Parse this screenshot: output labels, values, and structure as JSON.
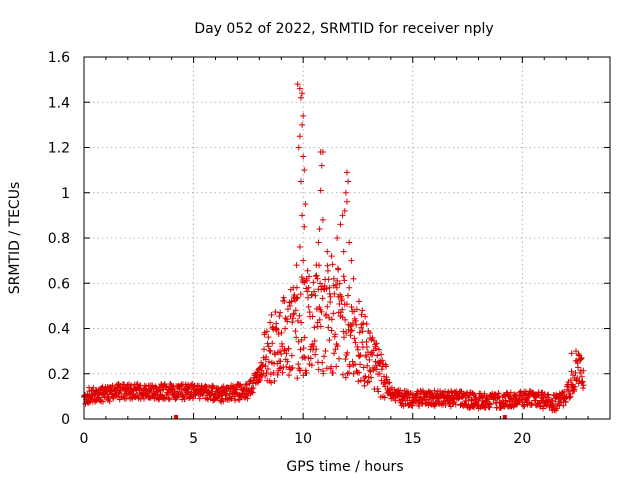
{
  "chart_data": {
    "type": "scatter",
    "title": "Day 052 of 2022, SRMTID for receiver nply",
    "xlabel": "GPS time / hours",
    "ylabel": "SRMTID / TECUs",
    "xlim": [
      0,
      24
    ],
    "ylim": [
      0,
      1.6
    ],
    "xticks": [
      0,
      5,
      10,
      15,
      20
    ],
    "xtick_labels": [
      "0",
      "5",
      "10",
      "15",
      "20"
    ],
    "yticks": [
      0,
      0.2,
      0.4,
      0.6,
      0.8,
      1.0,
      1.2,
      1.4,
      1.6
    ],
    "ytick_labels": [
      "0",
      "0.2",
      "0.4",
      "0.6",
      "0.8",
      "1",
      "1.2",
      "1.4",
      "1.6"
    ],
    "grid": true,
    "marker": "plus",
    "color": "#e00000",
    "series": [
      {
        "name": "SRMTID",
        "profile": [
          [
            0.0,
            0.1
          ],
          [
            0.5,
            0.11
          ],
          [
            1.0,
            0.11
          ],
          [
            1.5,
            0.12
          ],
          [
            2.0,
            0.12
          ],
          [
            2.5,
            0.12
          ],
          [
            3.0,
            0.12
          ],
          [
            3.5,
            0.12
          ],
          [
            4.0,
            0.12
          ],
          [
            4.5,
            0.12
          ],
          [
            5.0,
            0.12
          ],
          [
            5.5,
            0.12
          ],
          [
            6.0,
            0.11
          ],
          [
            6.5,
            0.11
          ],
          [
            7.0,
            0.12
          ],
          [
            7.5,
            0.12
          ],
          [
            8.0,
            0.2
          ],
          [
            8.5,
            0.3
          ],
          [
            9.0,
            0.34
          ],
          [
            9.5,
            0.38
          ],
          [
            10.0,
            0.42
          ],
          [
            10.5,
            0.45
          ],
          [
            11.0,
            0.44
          ],
          [
            11.5,
            0.45
          ],
          [
            12.0,
            0.4
          ],
          [
            12.5,
            0.32
          ],
          [
            13.0,
            0.28
          ],
          [
            13.5,
            0.2
          ],
          [
            14.0,
            0.12
          ],
          [
            14.5,
            0.09
          ],
          [
            15.0,
            0.09
          ],
          [
            16.0,
            0.09
          ],
          [
            17.0,
            0.09
          ],
          [
            18.0,
            0.08
          ],
          [
            19.0,
            0.08
          ],
          [
            20.0,
            0.09
          ],
          [
            20.5,
            0.09
          ],
          [
            21.0,
            0.08
          ],
          [
            21.5,
            0.07
          ],
          [
            22.0,
            0.1
          ],
          [
            22.5,
            0.22
          ],
          [
            22.8,
            0.2
          ]
        ],
        "x_range": [
          0.0,
          22.8
        ],
        "n_points": 1400,
        "outliers": [
          [
            9.75,
            1.48
          ],
          [
            9.85,
            1.46
          ],
          [
            9.9,
            1.42
          ],
          [
            9.95,
            1.44
          ],
          [
            10.0,
            1.34
          ],
          [
            9.95,
            1.3
          ],
          [
            9.85,
            1.25
          ],
          [
            9.8,
            1.2
          ],
          [
            10.0,
            1.16
          ],
          [
            10.05,
            1.1
          ],
          [
            9.9,
            1.05
          ],
          [
            10.1,
            0.95
          ],
          [
            9.95,
            0.9
          ],
          [
            10.05,
            0.85
          ],
          [
            9.85,
            0.76
          ],
          [
            10.0,
            0.7
          ],
          [
            9.7,
            0.68
          ],
          [
            10.15,
            0.62
          ],
          [
            10.8,
            1.18
          ],
          [
            10.9,
            1.18
          ],
          [
            10.85,
            1.12
          ],
          [
            10.8,
            1.01
          ],
          [
            10.9,
            0.88
          ],
          [
            10.75,
            0.84
          ],
          [
            10.7,
            0.78
          ],
          [
            10.6,
            0.68
          ],
          [
            10.65,
            0.62
          ],
          [
            11.1,
            0.74
          ],
          [
            11.3,
            0.72
          ],
          [
            11.55,
            0.8
          ],
          [
            11.7,
            0.86
          ],
          [
            11.8,
            0.9
          ],
          [
            11.9,
            0.92
          ],
          [
            12.0,
            0.96
          ],
          [
            11.95,
            1.0
          ],
          [
            12.05,
            1.05
          ],
          [
            12.0,
            1.09
          ],
          [
            12.1,
            0.78
          ],
          [
            11.85,
            0.74
          ],
          [
            11.6,
            0.66
          ],
          [
            11.4,
            0.62
          ],
          [
            12.2,
            0.7
          ],
          [
            12.3,
            0.62
          ],
          [
            12.1,
            0.58
          ],
          [
            11.2,
            0.58
          ],
          [
            10.4,
            0.55
          ],
          [
            10.25,
            0.58
          ],
          [
            9.55,
            0.58
          ],
          [
            9.4,
            0.5
          ],
          [
            8.95,
            0.47
          ],
          [
            12.55,
            0.52
          ],
          [
            12.7,
            0.48
          ],
          [
            12.9,
            0.42
          ],
          [
            13.05,
            0.38
          ],
          [
            13.3,
            0.32
          ],
          [
            22.25,
            0.29
          ],
          [
            22.45,
            0.3
          ],
          [
            22.6,
            0.28
          ],
          [
            22.7,
            0.27
          ]
        ]
      }
    ],
    "bottom_marks": [
      4.2,
      19.2
    ]
  }
}
